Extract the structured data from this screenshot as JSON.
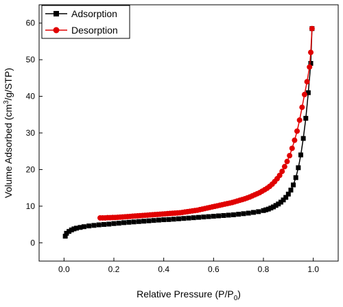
{
  "chart_data": {
    "type": "line",
    "title": "",
    "xlabel": "Relative Pressure (P/P",
    "xlabel_sub": "0",
    "xlabel_close": ")",
    "ylabel_prefix": "Volume Adsorbed (cm",
    "ylabel_sup": "3",
    "ylabel_suffix": "/g/STP)",
    "xlim": [
      -0.1,
      1.1
    ],
    "ylim": [
      -5,
      65
    ],
    "xticks": [
      0.0,
      0.2,
      0.4,
      0.6,
      0.8,
      1.0
    ],
    "xtick_labels": [
      "0.0",
      "0.2",
      "0.4",
      "0.6",
      "0.8",
      "1.0"
    ],
    "yticks": [
      0,
      10,
      20,
      30,
      40,
      50,
      60
    ],
    "ytick_labels": [
      "0",
      "10",
      "20",
      "30",
      "40",
      "50",
      "60"
    ],
    "grid": false,
    "legend_position": "top-left",
    "series": [
      {
        "name": "Adsorption",
        "color": "#000000",
        "marker": "square",
        "x": [
          0.005,
          0.01,
          0.02,
          0.03,
          0.04,
          0.05,
          0.065,
          0.08,
          0.1,
          0.12,
          0.14,
          0.16,
          0.18,
          0.2,
          0.22,
          0.24,
          0.26,
          0.28,
          0.3,
          0.32,
          0.34,
          0.36,
          0.38,
          0.4,
          0.42,
          0.44,
          0.46,
          0.48,
          0.5,
          0.52,
          0.54,
          0.56,
          0.58,
          0.6,
          0.62,
          0.64,
          0.66,
          0.68,
          0.7,
          0.72,
          0.74,
          0.76,
          0.78,
          0.8,
          0.81,
          0.82,
          0.83,
          0.84,
          0.85,
          0.86,
          0.87,
          0.88,
          0.89,
          0.9,
          0.91,
          0.92,
          0.93,
          0.94,
          0.95,
          0.96,
          0.97,
          0.98,
          0.99,
          0.995
        ],
        "y": [
          1.8,
          2.6,
          3.1,
          3.5,
          3.8,
          4.0,
          4.2,
          4.4,
          4.6,
          4.75,
          4.9,
          5.0,
          5.1,
          5.25,
          5.35,
          5.5,
          5.6,
          5.7,
          5.8,
          5.9,
          6.0,
          6.1,
          6.2,
          6.3,
          6.35,
          6.45,
          6.55,
          6.65,
          6.75,
          6.85,
          6.95,
          7.05,
          7.15,
          7.25,
          7.35,
          7.45,
          7.55,
          7.65,
          7.8,
          7.95,
          8.1,
          8.3,
          8.5,
          8.8,
          9.0,
          9.2,
          9.5,
          9.8,
          10.2,
          10.6,
          11.1,
          11.7,
          12.4,
          13.3,
          14.4,
          15.8,
          17.8,
          20.5,
          24.0,
          28.5,
          34.0,
          41.0,
          49.0,
          58.5
        ]
      },
      {
        "name": "Desorption",
        "color": "#e00000",
        "marker": "circle",
        "x": [
          0.995,
          0.99,
          0.985,
          0.975,
          0.965,
          0.955,
          0.945,
          0.935,
          0.925,
          0.915,
          0.905,
          0.895,
          0.885,
          0.875,
          0.865,
          0.855,
          0.845,
          0.835,
          0.825,
          0.815,
          0.805,
          0.795,
          0.785,
          0.775,
          0.765,
          0.755,
          0.745,
          0.735,
          0.725,
          0.715,
          0.705,
          0.695,
          0.685,
          0.675,
          0.665,
          0.655,
          0.645,
          0.635,
          0.625,
          0.615,
          0.605,
          0.595,
          0.585,
          0.575,
          0.565,
          0.555,
          0.545,
          0.535,
          0.525,
          0.515,
          0.505,
          0.495,
          0.485,
          0.475,
          0.465,
          0.455,
          0.445,
          0.435,
          0.425,
          0.415,
          0.405,
          0.395,
          0.385,
          0.375,
          0.365,
          0.355,
          0.345,
          0.335,
          0.325,
          0.315,
          0.305,
          0.295,
          0.285,
          0.275,
          0.265,
          0.255,
          0.245,
          0.235,
          0.225,
          0.215,
          0.205,
          0.195,
          0.185,
          0.175,
          0.165,
          0.155,
          0.145
        ],
        "y": [
          58.5,
          52.0,
          48.0,
          44.0,
          40.5,
          37.0,
          33.5,
          30.5,
          28.0,
          25.8,
          23.8,
          22.2,
          20.8,
          19.5,
          18.4,
          17.5,
          16.7,
          16.0,
          15.4,
          14.9,
          14.5,
          14.1,
          13.7,
          13.4,
          13.1,
          12.8,
          12.5,
          12.25,
          12.0,
          11.8,
          11.6,
          11.4,
          11.2,
          11.0,
          10.85,
          10.7,
          10.55,
          10.4,
          10.25,
          10.1,
          9.95,
          9.8,
          9.65,
          9.5,
          9.35,
          9.2,
          9.05,
          8.9,
          8.8,
          8.7,
          8.6,
          8.5,
          8.4,
          8.3,
          8.2,
          8.15,
          8.1,
          8.05,
          8.0,
          7.95,
          7.9,
          7.85,
          7.8,
          7.75,
          7.7,
          7.65,
          7.6,
          7.55,
          7.5,
          7.45,
          7.4,
          7.35,
          7.3,
          7.25,
          7.2,
          7.15,
          7.1,
          7.05,
          7.0,
          6.95,
          6.9,
          6.9,
          6.85,
          6.85,
          6.8,
          6.8,
          6.8
        ]
      }
    ]
  }
}
